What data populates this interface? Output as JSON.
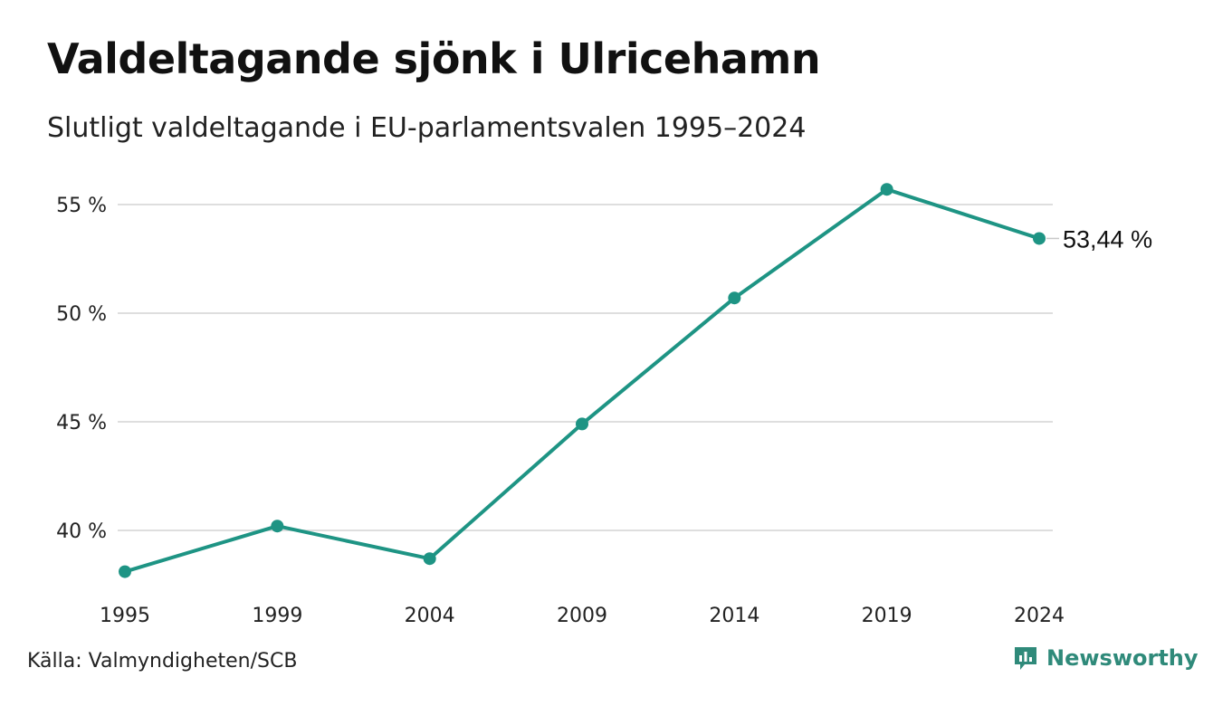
{
  "title": "Valdeltagande sjönk i Ulricehamn",
  "subtitle": "Slutligt valdeltagande i EU-parlamentsvalen 1995–2024",
  "source": "Källa: Valmyndigheten/SCB",
  "brand": {
    "name": "Newsworthy",
    "icon": "bar-chart-speech-bubble-icon",
    "color": "#2f8a7a"
  },
  "chart_data": {
    "type": "line",
    "x": [
      "1995",
      "1999",
      "2004",
      "2009",
      "2014",
      "2019",
      "2024"
    ],
    "series": [
      {
        "values": [
          38.1,
          40.2,
          38.7,
          44.9,
          50.7,
          55.7,
          53.44
        ],
        "color": "#1e9484"
      }
    ],
    "yticks": [
      40,
      45,
      50,
      55
    ],
    "ytick_labels": [
      "40 %",
      "45 %",
      "50 %",
      "55 %"
    ],
    "ylim": [
      37,
      56.5
    ],
    "grid": true,
    "end_label": "53,44 %"
  }
}
